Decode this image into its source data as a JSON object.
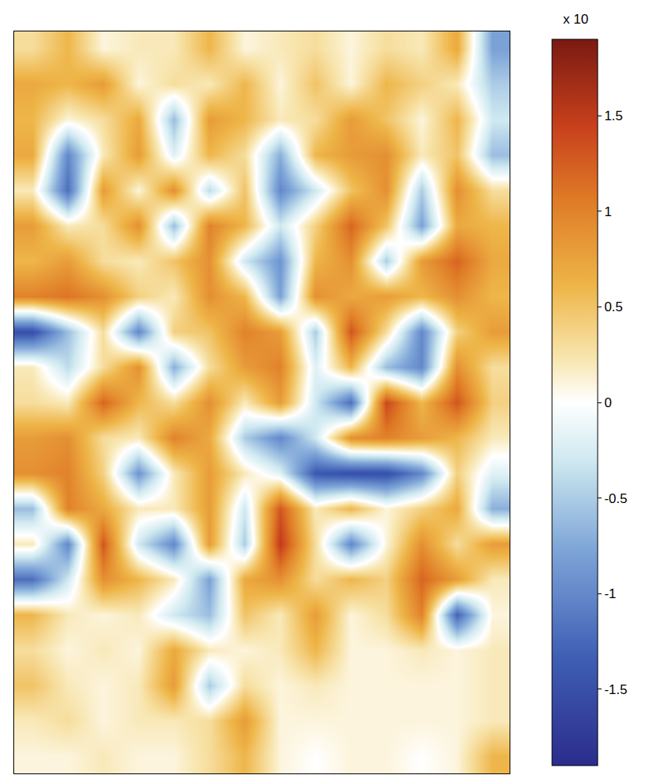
{
  "chart_data": {
    "type": "heatmap",
    "colorbar_title": "x 10",
    "tick_labels": false,
    "color_range": [
      -1.9,
      1.9
    ],
    "color_ticks": [
      -1.5,
      -1,
      -0.5,
      0,
      0.5,
      1,
      1.5
    ],
    "z": [
      [
        0.3,
        0.6,
        0.1,
        0.2,
        0.2,
        0.6,
        0.1,
        0.2,
        0.3,
        0.1,
        0.3,
        0.2,
        0.7,
        -0.8
      ],
      [
        0.7,
        0.6,
        0.8,
        0.1,
        0.3,
        0.2,
        0.6,
        0.1,
        0.5,
        0.1,
        0.6,
        0.4,
        0.2,
        -0.5
      ],
      [
        0.6,
        0.1,
        0.3,
        0.7,
        -0.6,
        0.8,
        0.6,
        0.2,
        0.3,
        0.8,
        0.5,
        0.1,
        0.6,
        -0.3
      ],
      [
        0.7,
        -1.0,
        0.2,
        0.8,
        -0.2,
        0.6,
        0.3,
        -0.7,
        0.6,
        0.8,
        0.9,
        0.2,
        0.5,
        -0.6
      ],
      [
        0.2,
        -1.2,
        0.8,
        0.1,
        0.9,
        -0.4,
        0.5,
        -1.0,
        -0.3,
        0.5,
        0.9,
        -0.5,
        0.9,
        0.3
      ],
      [
        0.8,
        0.2,
        0.3,
        0.9,
        -0.6,
        1.0,
        0.6,
        -0.3,
        0.4,
        1.2,
        0.5,
        -0.8,
        0.7,
        0.6
      ],
      [
        0.6,
        0.8,
        0.3,
        0.2,
        0.5,
        0.9,
        -0.3,
        -0.9,
        0.6,
        0.9,
        -0.5,
        0.8,
        1.2,
        0.7
      ],
      [
        1.0,
        1.1,
        0.9,
        0.4,
        0.2,
        0.9,
        0.6,
        -0.8,
        0.9,
        0.7,
        0.8,
        0.6,
        0.9,
        0.6
      ],
      [
        -1.5,
        -0.6,
        0.3,
        -1.0,
        0.4,
        0.5,
        1.0,
        0.8,
        -0.5,
        1.3,
        0.3,
        -1.0,
        0.4,
        0.8
      ],
      [
        0.2,
        -0.4,
        0.3,
        0.9,
        -0.7,
        0.3,
        0.8,
        1.0,
        -0.2,
        0.6,
        -0.6,
        -1.0,
        0.9,
        0.3
      ],
      [
        0.3,
        0.2,
        1.2,
        0.6,
        0.3,
        0.9,
        0.2,
        0.8,
        -0.3,
        -1.2,
        1.4,
        0.6,
        1.3,
        0.4
      ],
      [
        0.8,
        0.9,
        0.3,
        0.2,
        1.0,
        0.7,
        -0.5,
        -1.0,
        -0.3,
        0.9,
        1.0,
        0.8,
        0.6,
        0.2
      ],
      [
        0.9,
        1.0,
        0.4,
        -0.9,
        0.2,
        0.8,
        0.2,
        -0.2,
        -1.4,
        -1.5,
        -1.5,
        -1.0,
        0.4,
        -0.2
      ],
      [
        -0.6,
        1.0,
        0.7,
        0.2,
        0.2,
        0.8,
        -0.3,
        1.3,
        0.2,
        0.6,
        0.1,
        0.4,
        0.7,
        -0.7
      ],
      [
        0.2,
        -1.0,
        1.3,
        -0.3,
        -1.0,
        0.8,
        -0.5,
        1.5,
        0.3,
        -1.0,
        0.1,
        0.9,
        0.3,
        0.8
      ],
      [
        -1.2,
        -0.3,
        0.9,
        0.6,
        0.2,
        -0.8,
        0.7,
        0.9,
        0.3,
        0.6,
        0.4,
        1.2,
        0.8,
        0.2
      ],
      [
        0.6,
        0.2,
        0.1,
        0.2,
        -0.3,
        -0.6,
        0.5,
        0.2,
        0.8,
        0.1,
        0.3,
        1.0,
        -1.3,
        0.1
      ],
      [
        0.3,
        0.1,
        0.2,
        0.1,
        0.7,
        0.2,
        0.1,
        0.2,
        0.6,
        0.1,
        0.1,
        0.2,
        0.1,
        0.2
      ],
      [
        0.5,
        0.2,
        0.1,
        0.2,
        0.8,
        -0.5,
        0.3,
        0.1,
        0.2,
        0.1,
        0.1,
        0.1,
        0.1,
        0.2
      ],
      [
        0.2,
        0.3,
        0.1,
        0.2,
        0.2,
        0.3,
        0.8,
        0.1,
        0.1,
        0.1,
        0.1,
        0.1,
        0.1,
        0.2
      ],
      [
        0.1,
        0.1,
        0.2,
        0.1,
        0.1,
        0.3,
        0.6,
        0.1,
        0.0,
        0.1,
        0.1,
        0.0,
        0.1,
        0.6
      ]
    ]
  }
}
